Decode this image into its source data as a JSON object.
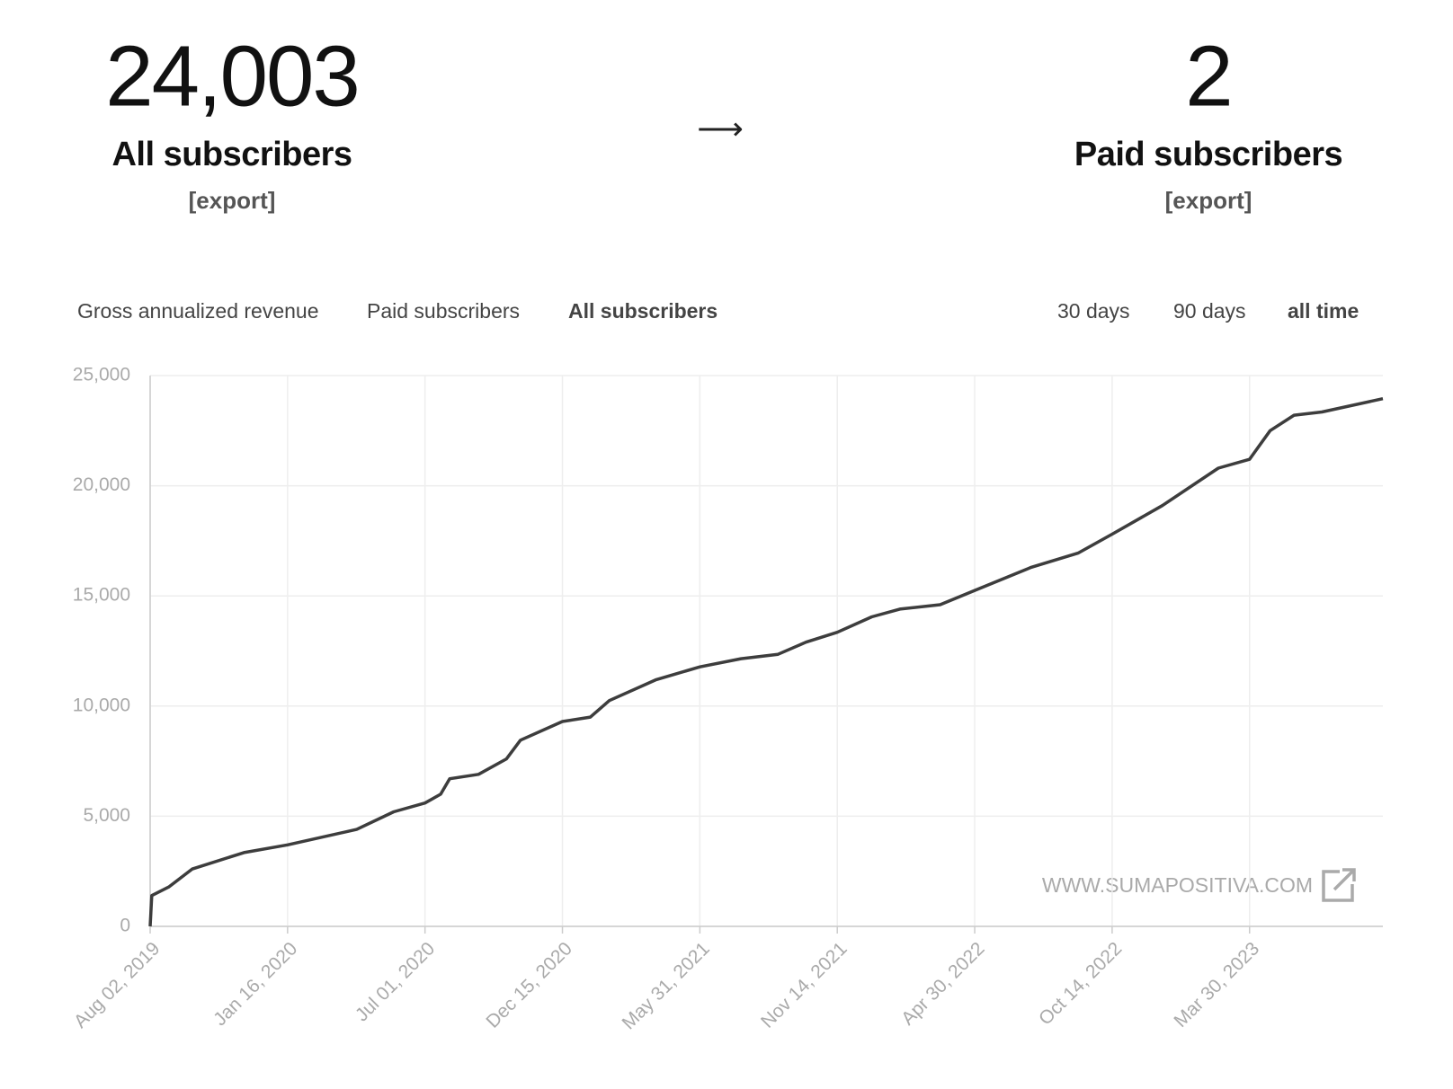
{
  "header": {
    "stats": [
      {
        "value": "24,003",
        "label": "All subscribers",
        "link": "[export]"
      },
      {
        "value": "2",
        "label": "Paid subscribers",
        "link": "[export]"
      }
    ],
    "arrow": "⟶"
  },
  "tabs": {
    "metrics": [
      "Gross annualized revenue",
      "Paid subscribers",
      "All subscribers"
    ],
    "active_metric": 2,
    "ranges": [
      "30 days",
      "90 days",
      "all time"
    ],
    "active_range": 2
  },
  "watermark": "WWW.SUMAPOSITIVA.COM",
  "chart_data": {
    "type": "line",
    "color": "#3d3d3d",
    "grid": true,
    "x": [
      "2019-08-02",
      "2019-08-04",
      "2019-08-25",
      "2019-09-22",
      "2019-11-24",
      "2020-01-16",
      "2020-04-09",
      "2020-05-24",
      "2020-07-01",
      "2020-07-20",
      "2020-07-31",
      "2020-09-04",
      "2020-10-08",
      "2020-10-25",
      "2020-12-15",
      "2021-01-18",
      "2021-02-10",
      "2021-04-08",
      "2021-05-31",
      "2021-07-20",
      "2021-09-03",
      "2021-10-07",
      "2021-11-14",
      "2021-12-26",
      "2022-01-29",
      "2022-03-19",
      "2022-04-30",
      "2022-07-08",
      "2022-09-03",
      "2022-10-14",
      "2022-12-14",
      "2023-02-20",
      "2023-03-30",
      "2023-04-24",
      "2023-05-23",
      "2023-06-26",
      "2023-09-08"
    ],
    "values": [
      0,
      1400,
      1800,
      2600,
      3350,
      3700,
      4400,
      5200,
      5600,
      6000,
      6700,
      6900,
      7600,
      8450,
      9300,
      9500,
      10250,
      11200,
      11780,
      12150,
      12350,
      12900,
      13350,
      14050,
      14400,
      14600,
      15250,
      16300,
      16950,
      17800,
      19100,
      20800,
      21200,
      22500,
      23200,
      23350,
      23950
    ],
    "xlim": [
      "2019-08-02",
      "2023-09-08"
    ],
    "xticks": [
      {
        "value": "2019-08-02",
        "label": "Aug 02, 2019"
      },
      {
        "value": "2020-01-16",
        "label": "Jan 16, 2020"
      },
      {
        "value": "2020-07-01",
        "label": "Jul 01, 2020"
      },
      {
        "value": "2020-12-15",
        "label": "Dec 15, 2020"
      },
      {
        "value": "2021-05-31",
        "label": "May 31, 2021"
      },
      {
        "value": "2021-11-14",
        "label": "Nov 14, 2021"
      },
      {
        "value": "2022-04-30",
        "label": "Apr 30, 2022"
      },
      {
        "value": "2022-10-14",
        "label": "Oct 14, 2022"
      },
      {
        "value": "2023-03-30",
        "label": "Mar 30, 2023"
      }
    ],
    "ylim": [
      0,
      25000
    ],
    "yticks": [
      0,
      {
        "value": 5000,
        "label": "5,000"
      },
      {
        "value": 10000,
        "label": "10,000"
      },
      {
        "value": 15000,
        "label": "15,000"
      },
      {
        "value": 20000,
        "label": "20,000"
      },
      {
        "value": 25000,
        "label": "25,000"
      }
    ]
  }
}
